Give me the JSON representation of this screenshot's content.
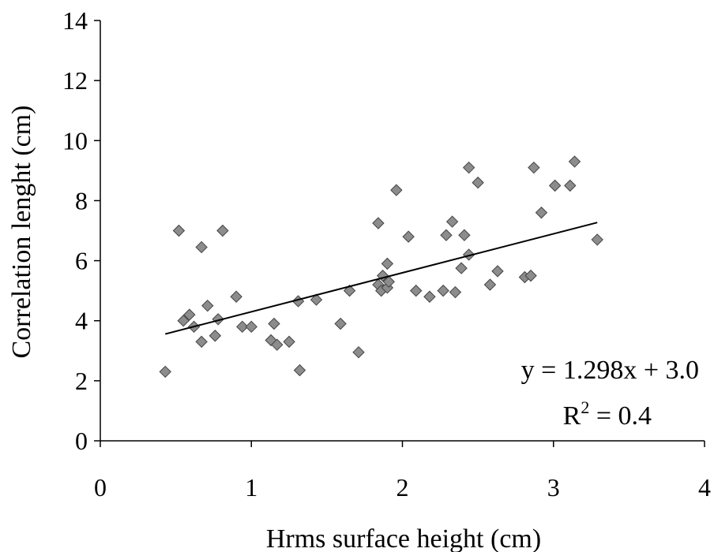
{
  "chart_data": {
    "type": "scatter",
    "xlabel": "Hrms surface height (cm)",
    "ylabel": "Correlation lenght (cm)",
    "xlim": [
      0,
      4
    ],
    "ylim": [
      0,
      14
    ],
    "xticks": [
      "0",
      "1",
      "2",
      "3",
      "4"
    ],
    "yticks": [
      "0",
      "2",
      "4",
      "6",
      "8",
      "10",
      "12",
      "14"
    ],
    "grid": false,
    "legend": "none",
    "marker": "diamond",
    "marker_color": "#8c8c8c",
    "points": [
      [
        0.43,
        2.3
      ],
      [
        0.52,
        7.0
      ],
      [
        0.55,
        4.0
      ],
      [
        0.59,
        4.2
      ],
      [
        0.62,
        3.8
      ],
      [
        0.67,
        3.3
      ],
      [
        0.67,
        6.45
      ],
      [
        0.71,
        4.5
      ],
      [
        0.76,
        3.5
      ],
      [
        0.78,
        4.05
      ],
      [
        0.81,
        7.0
      ],
      [
        0.9,
        4.8
      ],
      [
        0.94,
        3.8
      ],
      [
        1.0,
        3.8
      ],
      [
        1.13,
        3.35
      ],
      [
        1.15,
        3.9
      ],
      [
        1.17,
        3.2
      ],
      [
        1.25,
        3.3
      ],
      [
        1.31,
        4.65
      ],
      [
        1.32,
        2.35
      ],
      [
        1.43,
        4.7
      ],
      [
        1.59,
        3.9
      ],
      [
        1.65,
        5.0
      ],
      [
        1.71,
        2.95
      ],
      [
        1.84,
        7.25
      ],
      [
        1.84,
        5.2
      ],
      [
        1.86,
        5.0
      ],
      [
        1.87,
        5.5
      ],
      [
        1.9,
        5.9
      ],
      [
        1.9,
        5.1
      ],
      [
        1.91,
        5.3
      ],
      [
        1.96,
        8.35
      ],
      [
        2.04,
        6.8
      ],
      [
        2.09,
        5.0
      ],
      [
        2.18,
        4.8
      ],
      [
        2.27,
        5.0
      ],
      [
        2.29,
        6.85
      ],
      [
        2.33,
        7.3
      ],
      [
        2.35,
        4.95
      ],
      [
        2.39,
        5.75
      ],
      [
        2.41,
        6.85
      ],
      [
        2.44,
        6.2
      ],
      [
        2.44,
        9.1
      ],
      [
        2.5,
        8.6
      ],
      [
        2.58,
        5.2
      ],
      [
        2.63,
        5.65
      ],
      [
        2.81,
        5.45
      ],
      [
        2.85,
        5.5
      ],
      [
        2.87,
        9.1
      ],
      [
        2.92,
        7.6
      ],
      [
        3.01,
        8.5
      ],
      [
        3.11,
        8.5
      ],
      [
        3.14,
        9.3
      ],
      [
        3.29,
        6.7
      ]
    ],
    "trendline": {
      "slope": 1.298,
      "intercept": 3.0,
      "x_range": [
        0.43,
        3.29
      ]
    },
    "annotations": {
      "equation": "y = 1.298x + 3.0",
      "r2_prefix": "R",
      "r2_sup": "2",
      "r2_suffix": " = 0.4"
    }
  }
}
